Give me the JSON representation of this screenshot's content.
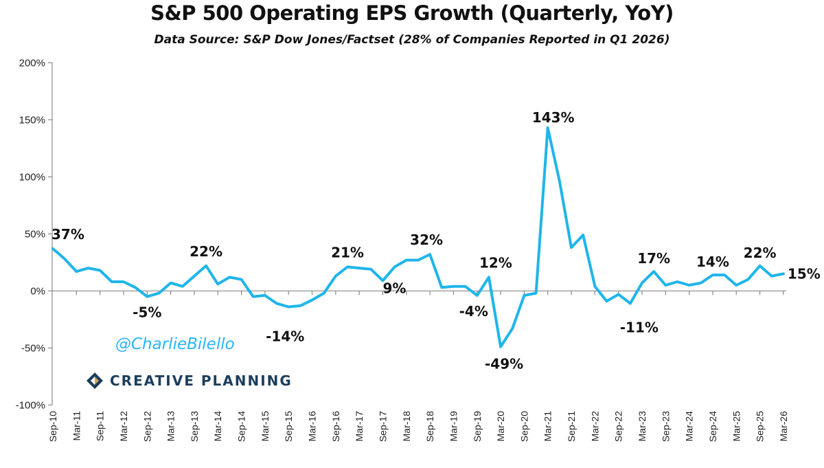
{
  "chart_data": {
    "type": "line",
    "title": "S&P 500 Operating EPS Growth (Quarterly, YoY)",
    "subtitle": "Data Source: S&P Dow Jones/Factset (28% of Companies Reported in Q1 2026)",
    "xlabel": "",
    "ylabel": "",
    "ylim": [
      -100,
      200
    ],
    "yticks": [
      -100,
      -50,
      0,
      50,
      100,
      150,
      200
    ],
    "ytick_labels": [
      "-100%",
      "-50%",
      "0%",
      "50%",
      "100%",
      "150%",
      "200%"
    ],
    "x_tick_labels": [
      "Sep-10",
      "Mar-11",
      "Sep-11",
      "Mar-12",
      "Sep-12",
      "Mar-13",
      "Sep-13",
      "Mar-14",
      "Sep-14",
      "Mar-15",
      "Sep-15",
      "Mar-16",
      "Sep-16",
      "Mar-17",
      "Sep-17",
      "Mar-18",
      "Sep-18",
      "Mar-19",
      "Sep-19",
      "Mar-20",
      "Sep-20",
      "Mar-21",
      "Sep-21",
      "Mar-22",
      "Sep-22",
      "Mar-23",
      "Sep-23",
      "Mar-24",
      "Sep-24",
      "Mar-25",
      "Sep-25",
      "Mar-26"
    ],
    "x_first": "Sep-10",
    "x_frequency": "quarterly",
    "grid": false,
    "line_color": "#1fb5ea",
    "values": [
      37,
      28,
      17,
      20,
      18,
      8,
      8,
      3,
      -5,
      -2,
      7,
      4,
      13,
      22,
      6,
      12,
      10,
      -5,
      -4,
      -11,
      -14,
      -13,
      -8,
      -2,
      13,
      21,
      20,
      19,
      9,
      21,
      27,
      27,
      32,
      3,
      4,
      4,
      -4,
      12,
      -49,
      -33,
      -4,
      -2,
      143,
      96,
      38,
      49,
      4,
      -9,
      -3,
      -11,
      7,
      17,
      5,
      8,
      5,
      7,
      14,
      14,
      5,
      10,
      22,
      13,
      15
    ],
    "annotations": [
      {
        "index": 0,
        "text": "37%"
      },
      {
        "index": 8,
        "text": "-5%"
      },
      {
        "index": 13,
        "text": "22%"
      },
      {
        "index": 20,
        "text": "-14%"
      },
      {
        "index": 25,
        "text": "21%"
      },
      {
        "index": 28,
        "text": "9%"
      },
      {
        "index": 32,
        "text": "32%"
      },
      {
        "index": 36,
        "text": "-4%"
      },
      {
        "index": 37,
        "text": "12%"
      },
      {
        "index": 38,
        "text": "-49%"
      },
      {
        "index": 42,
        "text": "143%"
      },
      {
        "index": 49,
        "text": "-11%"
      },
      {
        "index": 51,
        "text": "17%"
      },
      {
        "index": 56,
        "text": "14%"
      },
      {
        "index": 60,
        "text": "22%"
      },
      {
        "index": 62,
        "text": "15%"
      }
    ]
  },
  "watermark": {
    "handle": "@CharlieBilello",
    "logo_text": "CREATIVE PLANNING"
  }
}
